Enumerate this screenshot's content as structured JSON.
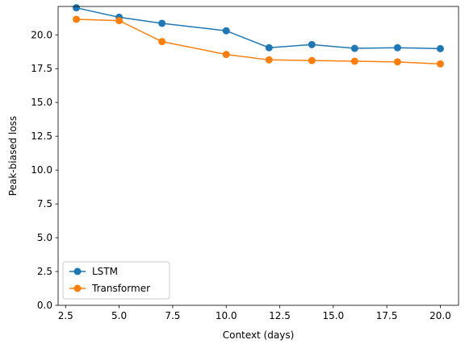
{
  "chart_data": {
    "type": "line",
    "title": "",
    "xlabel": "Context (days)",
    "ylabel": "Peak-biased loss",
    "x": [
      3,
      5,
      7,
      10,
      12,
      14,
      16,
      18,
      20
    ],
    "series": [
      {
        "name": "LSTM",
        "color": "#1f77b4",
        "marker": "circle",
        "values": [
          22.0,
          21.3,
          20.85,
          20.3,
          19.05,
          19.28,
          19.0,
          19.05,
          18.98
        ]
      },
      {
        "name": "Transformer",
        "color": "#ff7f0e",
        "marker": "circle",
        "values": [
          21.15,
          21.05,
          19.5,
          18.55,
          18.15,
          18.1,
          18.05,
          18.0,
          17.85
        ]
      }
    ],
    "xlim": [
      2.15,
      20.85
    ],
    "ylim": [
      0,
      22.1
    ],
    "xticks": [
      2.5,
      5.0,
      7.5,
      10.0,
      12.5,
      15.0,
      17.5,
      20.0
    ],
    "xtick_labels": [
      "2.5",
      "5.0",
      "7.5",
      "10.0",
      "12.5",
      "15.0",
      "17.5",
      "20.0"
    ],
    "yticks": [
      0.0,
      2.5,
      5.0,
      7.5,
      10.0,
      12.5,
      15.0,
      17.5,
      20.0
    ],
    "ytick_labels": [
      "0.0",
      "2.5",
      "5.0",
      "7.5",
      "10.0",
      "12.5",
      "15.0",
      "17.5",
      "20.0"
    ],
    "grid": false,
    "legend_position": "lower-left"
  }
}
